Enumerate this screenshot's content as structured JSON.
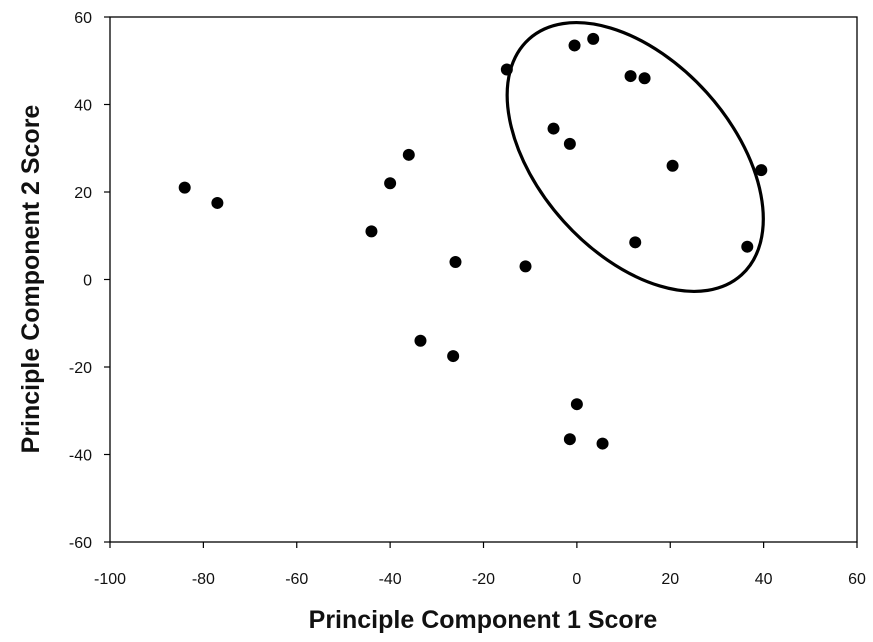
{
  "chart_data": {
    "type": "scatter",
    "title": "",
    "xlabel": "Principle Component 1 Score",
    "ylabel": "Principle Component 2 Score",
    "xlim": [
      -100,
      60
    ],
    "ylim": [
      -60,
      60
    ],
    "x_ticks": [
      -100,
      -80,
      -60,
      -40,
      -20,
      0,
      20,
      40,
      60
    ],
    "y_ticks": [
      -60,
      -40,
      -20,
      0,
      20,
      40,
      60
    ],
    "x_tick_labels": [
      "-100",
      "-80",
      "-60",
      "-40",
      "-20",
      "0",
      "20",
      "40",
      "60"
    ],
    "y_tick_labels": [
      "-60",
      "-40",
      "-20",
      "0",
      "20",
      "40",
      "60"
    ],
    "grid": false,
    "legend": "none",
    "points": [
      {
        "x": -84,
        "y": 21
      },
      {
        "x": -77,
        "y": 17.5
      },
      {
        "x": -44,
        "y": 11
      },
      {
        "x": -40,
        "y": 22
      },
      {
        "x": -36,
        "y": 28.5
      },
      {
        "x": -26,
        "y": 4
      },
      {
        "x": -11,
        "y": 3
      },
      {
        "x": -33.5,
        "y": -14
      },
      {
        "x": -26.5,
        "y": -17.5
      },
      {
        "x": 0,
        "y": -28.5
      },
      {
        "x": -1.5,
        "y": -36.5
      },
      {
        "x": 5.5,
        "y": -37.5
      },
      {
        "x": -15,
        "y": 48
      },
      {
        "x": -0.5,
        "y": 53.5
      },
      {
        "x": 3.5,
        "y": 55
      },
      {
        "x": 11.5,
        "y": 46.5
      },
      {
        "x": 14.5,
        "y": 46
      },
      {
        "x": -5,
        "y": 34.5
      },
      {
        "x": -1.5,
        "y": 31
      },
      {
        "x": 20.5,
        "y": 26
      },
      {
        "x": 39.5,
        "y": 25
      },
      {
        "x": 12.5,
        "y": 8.5
      },
      {
        "x": 36.5,
        "y": 7.5
      }
    ],
    "annotations": [
      {
        "type": "ellipse",
        "center": {
          "x": 12.5,
          "y": 28
        },
        "radius_x": 34,
        "radius_y": 22,
        "rotation_deg": 48
      }
    ],
    "colors": {
      "marker": "#000000",
      "axis": "#000000",
      "text": "#111111",
      "background": "#ffffff"
    }
  }
}
